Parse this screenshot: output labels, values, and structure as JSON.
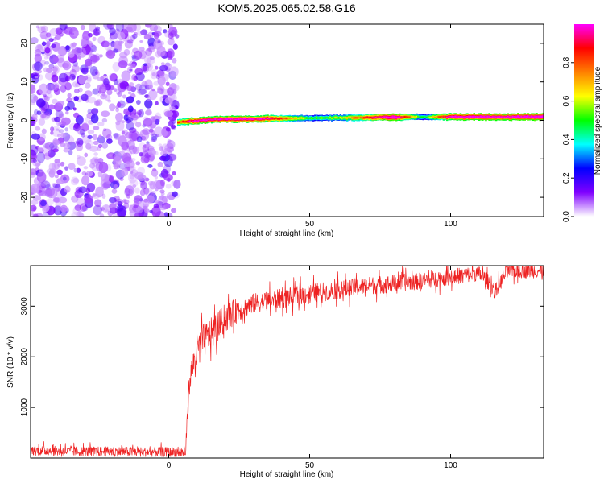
{
  "figure": {
    "title": "KOM5.2025.065.02.58.G16"
  },
  "chart_data": [
    {
      "type": "heatmap",
      "title": "KOM5.2025.065.02.58.G16",
      "xlabel": "Height of straight line (km)",
      "ylabel": "Frequency (Hz)",
      "xlim": [
        -49,
        133
      ],
      "ylim": [
        -25,
        25
      ],
      "x_ticks": [
        0,
        50,
        100
      ],
      "y_ticks": [
        -20,
        -10,
        0,
        10,
        20
      ],
      "colorbar": {
        "label": "Normalized spectral amplitude",
        "range": [
          0,
          1
        ],
        "ticks": [
          0.0,
          0.2,
          0.4,
          0.6,
          0.8
        ],
        "tick_labels": [
          "0.0",
          "0.2",
          "0.4",
          "0.6",
          "0.8"
        ],
        "colormap": [
          "#ffffff",
          "#8000ff",
          "#0000ff",
          "#00ffff",
          "#00ff00",
          "#ffff00",
          "#ff8000",
          "#ff0000",
          "#ff00ff"
        ]
      },
      "noise_region": {
        "x_range": [
          -49,
          3
        ],
        "amplitude_range": [
          0.05,
          0.2
        ]
      },
      "signal_band": {
        "x_range": [
          3,
          133
        ],
        "frequency_center": [
          [
            3,
            -0.5
          ],
          [
            15,
            0.2
          ],
          [
            50,
            0.6
          ],
          [
            90,
            0.9
          ],
          [
            133,
            0.9
          ]
        ],
        "amplitude": [
          [
            3,
            0.7
          ],
          [
            10,
            0.9
          ],
          [
            35,
            0.85
          ],
          [
            50,
            0.45
          ],
          [
            60,
            0.55
          ],
          [
            80,
            0.95
          ],
          [
            90,
            0.4
          ],
          [
            100,
            0.9
          ],
          [
            133,
            0.95
          ]
        ]
      }
    },
    {
      "type": "line",
      "xlabel": "Height of straight line (km)",
      "ylabel": "SNR (10 * v/v)",
      "xlim": [
        -49,
        133
      ],
      "ylim": [
        0,
        3800
      ],
      "x_ticks": [
        0,
        50,
        100
      ],
      "y_ticks": [
        1000,
        2000,
        3000
      ],
      "series": [
        {
          "color": "#ee2222",
          "noise_amplitude": [
            [
              -49,
              120
            ],
            [
              0,
              120
            ],
            [
              6,
              150
            ],
            [
              10,
              450
            ],
            [
              30,
              250
            ],
            [
              133,
              180
            ]
          ],
          "x": [
            -49,
            -40,
            -30,
            -20,
            -10,
            0,
            5,
            6,
            7,
            8,
            10,
            12,
            15,
            20,
            25,
            30,
            40,
            50,
            60,
            70,
            80,
            90,
            100,
            110,
            113,
            116,
            120,
            125,
            133
          ],
          "values": [
            150,
            140,
            130,
            130,
            120,
            120,
            110,
            120,
            1300,
            1700,
            2100,
            2300,
            2450,
            2750,
            2950,
            3050,
            3150,
            3250,
            3320,
            3400,
            3450,
            3500,
            3580,
            3650,
            3500,
            3300,
            3700,
            3700,
            3700
          ]
        }
      ]
    }
  ]
}
